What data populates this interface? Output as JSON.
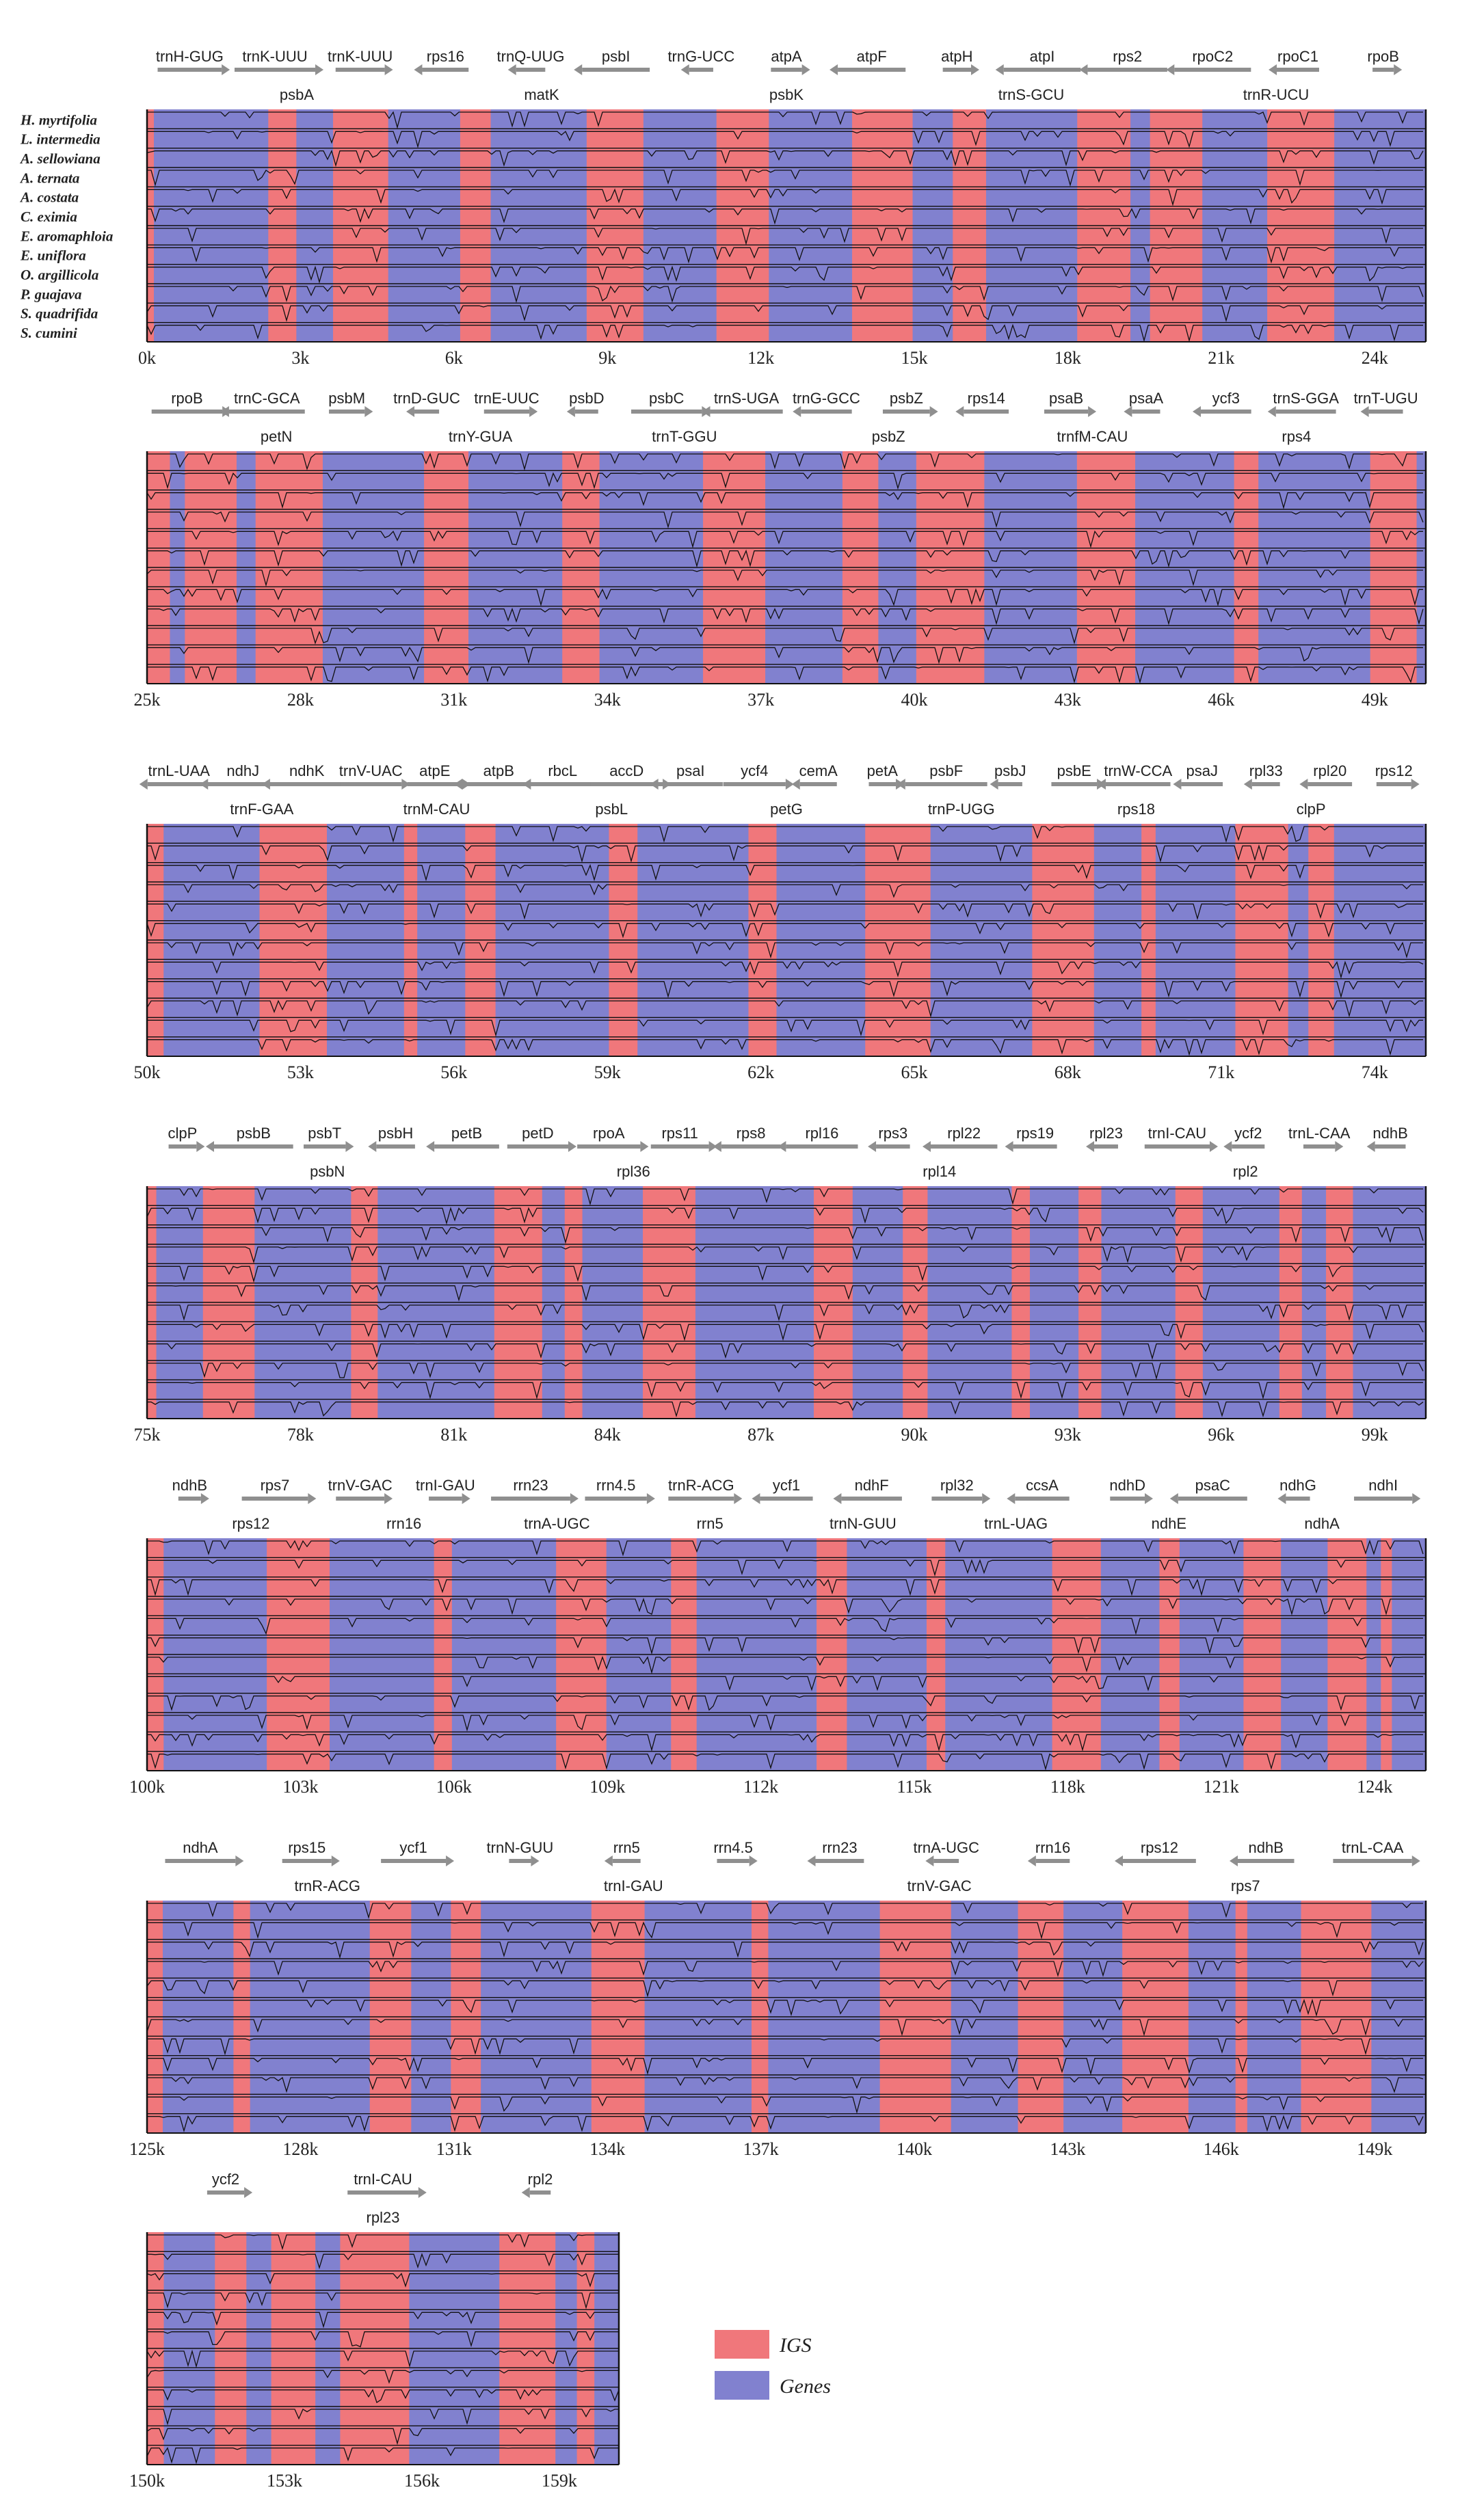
{
  "colors": {
    "igs": "#f0777b",
    "gene": "#8181cf",
    "arrow": "#8f8f8f",
    "trace": "#111111"
  },
  "species": [
    "H. myrtifolia",
    "L. intermedia",
    "A. sellowiana",
    "A. ternata",
    "A. costata",
    "C. eximia",
    "E. aromaphloia",
    "E. uniflora",
    "O. argillicola",
    "P. guajava",
    "S. quadrifida",
    "S. cumini"
  ],
  "legend": {
    "igs": "IGS",
    "genes": "Genes"
  },
  "panels": [
    {
      "start": 0,
      "ticks": [
        "0k",
        "3k",
        "6k",
        "9k",
        "12k",
        "15k",
        "18k",
        "21k",
        "24k"
      ],
      "genes_top": [
        "trnH-GUG",
        "trnK-UUU",
        "trnK-UUU",
        "rps16",
        "trnQ-UUG",
        "psbI",
        "trnG-UCC",
        "atpA",
        "atpF",
        "atpH",
        "atpI",
        "rps2",
        "rpoC2",
        "rpoC1",
        "rpoB"
      ],
      "genes_bottom": [
        "psbA",
        "matK",
        "psbK",
        "trnS-GCU",
        "trnR-UCU"
      ]
    },
    {
      "start": 25,
      "ticks": [
        "25k",
        "28k",
        "31k",
        "34k",
        "37k",
        "40k",
        "43k",
        "46k",
        "49k"
      ],
      "genes_top": [
        "rpoB",
        "trnC-GCA",
        "psbM",
        "trnD-GUC",
        "trnE-UUC",
        "psbD",
        "psbC",
        "trnS-UGA",
        "trnG-GCC",
        "psbZ",
        "rps14",
        "psaB",
        "psaA",
        "ycf3",
        "trnS-GGA",
        "trnT-UGU"
      ],
      "genes_bottom": [
        "petN",
        "trnY-GUA",
        "trnT-GGU",
        "psbZ",
        "trnfM-CAU",
        "rps4"
      ]
    },
    {
      "start": 50,
      "ticks": [
        "50k",
        "53k",
        "56k",
        "59k",
        "62k",
        "65k",
        "68k",
        "71k",
        "74k"
      ],
      "genes_top": [
        "trnL-UAA",
        "ndhJ",
        "ndhK",
        "trnV-UAC",
        "atpE",
        "atpB",
        "rbcL",
        "accD",
        "psaI",
        "ycf4",
        "cemA",
        "petA",
        "psbF",
        "psbJ",
        "psbE",
        "trnW-CCA",
        "psaJ",
        "rpl33",
        "rpl20",
        "rps12"
      ],
      "genes_bottom": [
        "trnF-GAA",
        "trnM-CAU",
        "psbL",
        "petG",
        "trnP-UGG",
        "rps18",
        "clpP"
      ]
    },
    {
      "start": 75,
      "ticks": [
        "75k",
        "78k",
        "81k",
        "84k",
        "87k",
        "90k",
        "93k",
        "96k",
        "99k"
      ],
      "genes_top": [
        "clpP",
        "psbB",
        "psbT",
        "psbH",
        "petB",
        "petD",
        "rpoA",
        "rps11",
        "rps8",
        "rpl16",
        "rps3",
        "rpl22",
        "rps19",
        "rpl23",
        "trnI-CAU",
        "ycf2",
        "trnL-CAA",
        "ndhB"
      ],
      "genes_bottom": [
        "psbN",
        "rpl36",
        "rpl14",
        "rpl2"
      ]
    },
    {
      "start": 100,
      "ticks": [
        "100k",
        "103k",
        "106k",
        "109k",
        "112k",
        "115k",
        "118k",
        "121k",
        "124k"
      ],
      "genes_top": [
        "ndhB",
        "rps7",
        "trnV-GAC",
        "trnI-GAU",
        "rrn23",
        "rrn4.5",
        "trnR-ACG",
        "ycf1",
        "ndhF",
        "rpl32",
        "ccsA",
        "ndhD",
        "psaC",
        "ndhG",
        "ndhI"
      ],
      "genes_bottom": [
        "rps12",
        "rrn16",
        "trnA-UGC",
        "rrn5",
        "trnN-GUU",
        "trnL-UAG",
        "ndhE",
        "ndhA"
      ]
    },
    {
      "start": 125,
      "ticks": [
        "125k",
        "128k",
        "131k",
        "134k",
        "137k",
        "140k",
        "143k",
        "146k",
        "149k"
      ],
      "genes_top": [
        "ndhA",
        "rps15",
        "ycf1",
        "trnN-GUU",
        "rrn5",
        "rrn4.5",
        "rrn23",
        "trnA-UGC",
        "rrn16",
        "rps12",
        "ndhB",
        "trnL-CAA"
      ],
      "genes_bottom": [
        "trnR-ACG",
        "trnI-GAU",
        "trnV-GAC",
        "rps7"
      ]
    },
    {
      "start": 150,
      "ticks": [
        "150k",
        "153k",
        "156k",
        "159k"
      ],
      "genes_top": [
        "ycf2",
        "trnI-CAU",
        "rpl2"
      ],
      "genes_bottom": [
        "rpl23"
      ]
    }
  ]
}
